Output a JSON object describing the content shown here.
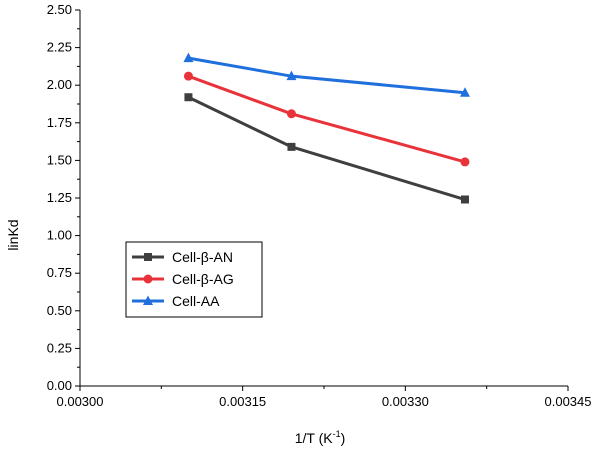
{
  "chart_data": {
    "type": "line",
    "xlabel_main": "1/T (K",
    "xlabel_sup": "-1",
    "xlabel_close": ")",
    "ylabel": "linKd",
    "xlim": [
      0.003,
      0.00345
    ],
    "ylim": [
      0.0,
      2.5
    ],
    "x_ticks": [
      "0.00300",
      "0.00315",
      "0.00330",
      "0.00345"
    ],
    "x_tick_values": [
      0.003,
      0.00315,
      0.0033,
      0.00345
    ],
    "y_ticks": [
      "0.00",
      "0.25",
      "0.50",
      "0.75",
      "1.00",
      "1.25",
      "1.50",
      "1.75",
      "2.00",
      "2.25",
      "2.50"
    ],
    "y_tick_values": [
      0.0,
      0.25,
      0.5,
      0.75,
      1.0,
      1.25,
      1.5,
      1.75,
      2.0,
      2.25,
      2.5
    ],
    "x": [
      0.0031,
      0.003195,
      0.003355
    ],
    "series": [
      {
        "name": "Cell-β-AN",
        "color": "#3f3f3f",
        "marker": "square",
        "values": [
          1.92,
          1.59,
          1.24
        ]
      },
      {
        "name": "Cell-β-AG",
        "color": "#e8333a",
        "marker": "circle",
        "values": [
          2.06,
          1.81,
          1.49
        ]
      },
      {
        "name": "Cell-AA",
        "color": "#1f6fdd",
        "marker": "triangle",
        "values": [
          2.18,
          2.06,
          1.95
        ]
      }
    ],
    "grid": false,
    "legend_position": "bottom-left"
  }
}
